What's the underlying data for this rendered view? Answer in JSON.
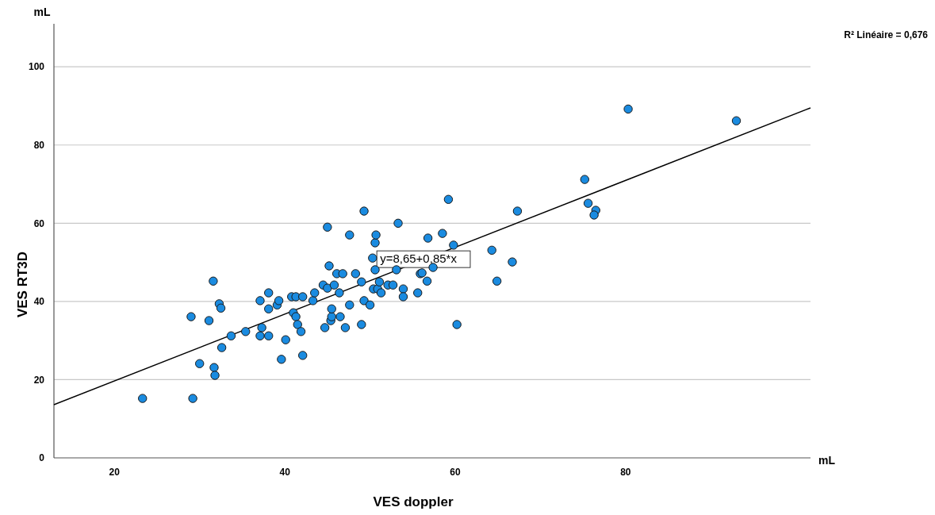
{
  "chart_data": {
    "type": "scatter",
    "xlabel": "VES doppler",
    "ylabel": "VES RT3D",
    "xlim": [
      12.9,
      101.7
    ],
    "xticks": [
      20,
      40,
      60,
      80
    ],
    "ylim": [
      0,
      111
    ],
    "yticks": [
      0,
      20,
      40,
      60,
      80,
      100
    ],
    "grid": "y",
    "annotations": [
      "R² Linéaire = 0,676",
      "mL",
      "mL",
      {
        "text": "y=8,65+0,85*x",
        "x": 50.8,
        "y": 50.7
      }
    ],
    "series": [
      {
        "color": "#1a8be0",
        "marker": "circle",
        "x": [
          23.3,
          29.2,
          29.0,
          30.0,
          31.1,
          31.6,
          31.7,
          31.8,
          32.3,
          32.5,
          32.6,
          33.7,
          35.4,
          37.1,
          37.3,
          37.1,
          38.1,
          38.1,
          38.1,
          39.1,
          39.3,
          39.6,
          40.1,
          40.8,
          41.0,
          41.3,
          41.3,
          41.5,
          41.9,
          42.1,
          42.1,
          43.3,
          43.5,
          44.5,
          44.7,
          45.0,
          45.0,
          45.2,
          45.4,
          45.5,
          45.5,
          45.8,
          46.1,
          46.4,
          46.5,
          46.8,
          47.1,
          47.6,
          47.6,
          48.3,
          49.0,
          49.0,
          49.3,
          49.3,
          50.0,
          50.3,
          50.4,
          50.6,
          50.7,
          50.6,
          50.9,
          51.1,
          51.3,
          52.1,
          52.7,
          53.1,
          53.3,
          53.9,
          53.9,
          55.6,
          55.9,
          56.1,
          56.7,
          56.8,
          57.4,
          58.5,
          59.2,
          59.8,
          60.2,
          64.3,
          64.9,
          66.7,
          67.3,
          75.2,
          75.6,
          76.5,
          76.3,
          80.3,
          93.0
        ],
        "values": [
          15.2,
          15.2,
          36.1,
          24.1,
          35.1,
          45.2,
          23.1,
          21.1,
          39.4,
          38.3,
          28.2,
          31.2,
          32.3,
          40.2,
          33.3,
          31.2,
          42.2,
          38.1,
          31.2,
          39.1,
          40.2,
          25.2,
          30.2,
          41.2,
          37.1,
          41.2,
          36.1,
          34.1,
          32.3,
          41.2,
          26.2,
          40.2,
          42.2,
          44.2,
          33.3,
          59.0,
          43.4,
          49.1,
          35.1,
          36.1,
          38.1,
          44.2,
          47.1,
          42.2,
          36.1,
          47.1,
          33.3,
          57.0,
          39.1,
          47.1,
          45.0,
          34.1,
          63.1,
          40.2,
          39.1,
          51.1,
          43.2,
          55.0,
          57.0,
          48.1,
          43.2,
          45.0,
          42.2,
          44.2,
          44.2,
          48.1,
          60.0,
          43.2,
          41.2,
          42.2,
          47.1,
          47.3,
          45.2,
          56.2,
          48.7,
          57.4,
          66.1,
          54.4,
          34.1,
          53.1,
          45.2,
          50.1,
          63.1,
          71.2,
          65.1,
          63.3,
          62.1,
          89.2,
          86.2
        ]
      },
      {
        "type": "line",
        "color": "#000000",
        "x": [
          12.9,
          101.7
        ],
        "values": [
          13.6,
          89.5
        ],
        "marker": "none"
      }
    ]
  }
}
